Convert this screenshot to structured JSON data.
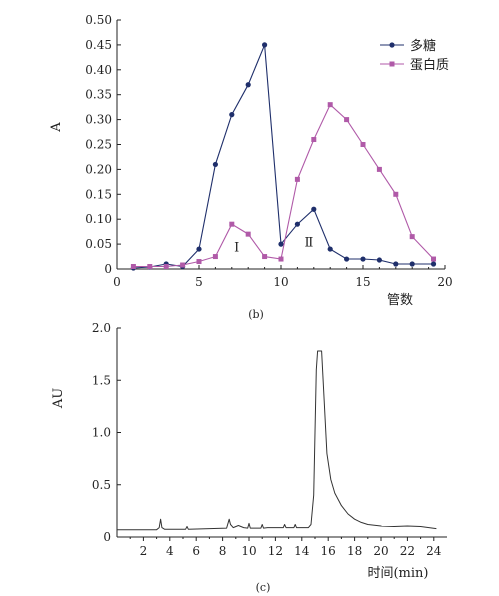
{
  "chart_data": [
    {
      "type": "line",
      "caption": "(b)",
      "xlabel": "管数",
      "ylabel": "A",
      "xlim": [
        0,
        20
      ],
      "ylim": [
        0,
        0.5
      ],
      "xticks": [
        0,
        5,
        10,
        15,
        20
      ],
      "yticks": [
        "0",
        "0.05",
        "0.10",
        "0.15",
        "0.20",
        "0.25",
        "0.30",
        "0.35",
        "0.40",
        "0.45",
        "0.50"
      ],
      "grid": false,
      "legend_position": "top-right",
      "series": [
        {
          "name": "多糖",
          "color": "#1f2f6b",
          "marker": "circle",
          "x": [
            1,
            2,
            3,
            4,
            5,
            6,
            7,
            8,
            9,
            10,
            11,
            12,
            13,
            14,
            15,
            16,
            17,
            18,
            19.3
          ],
          "y": [
            0.002,
            0.004,
            0.01,
            0.005,
            0.04,
            0.21,
            0.31,
            0.37,
            0.45,
            0.05,
            0.09,
            0.12,
            0.04,
            0.02,
            0.02,
            0.018,
            0.01,
            0.01,
            0.01
          ]
        },
        {
          "name": "蛋白质",
          "color": "#b05aa8",
          "marker": "square",
          "x": [
            1,
            2,
            3,
            4,
            5,
            6,
            7,
            8,
            9,
            10,
            11,
            12,
            13,
            14,
            15,
            16,
            17,
            18,
            19.3
          ],
          "y": [
            0.005,
            0.005,
            0.005,
            0.008,
            0.015,
            0.025,
            0.09,
            0.07,
            0.025,
            0.02,
            0.18,
            0.26,
            0.33,
            0.3,
            0.25,
            0.2,
            0.15,
            0.065,
            0.02
          ]
        }
      ],
      "annotations": [
        {
          "text": "Ⅰ",
          "x": 7.3,
          "y": 0.035
        },
        {
          "text": "Ⅱ",
          "x": 11.7,
          "y": 0.045
        }
      ]
    },
    {
      "type": "line",
      "caption": "(c)",
      "xlabel": "时间(min)",
      "ylabel": "AU",
      "xlim": [
        0,
        25
      ],
      "ylim": [
        0,
        2.0
      ],
      "xticks": [
        2,
        4,
        6,
        8,
        10,
        12,
        14,
        16,
        18,
        20,
        22,
        24
      ],
      "yticks": [
        "0",
        "0.5",
        "1.0",
        "1.5",
        "2.0"
      ],
      "grid": false,
      "series": [
        {
          "color": "#333333",
          "x": [
            0,
            3.0,
            3.2,
            3.3,
            3.4,
            3.6,
            5.2,
            5.3,
            5.4,
            8.3,
            8.5,
            8.6,
            8.8,
            9.2,
            9.6,
            9.9,
            10.0,
            10.1,
            10.4,
            10.9,
            11.0,
            11.1,
            11.4,
            12.0,
            12.6,
            12.7,
            12.8,
            13.4,
            13.5,
            13.6,
            14.5,
            14.7,
            14.9,
            15.0,
            15.1,
            15.2,
            15.5,
            15.7,
            15.9,
            16.2,
            16.5,
            17.0,
            17.5,
            18.0,
            18.5,
            19.0,
            20.0,
            21.0,
            22.0,
            23.0,
            24.2
          ],
          "y": [
            0.07,
            0.07,
            0.09,
            0.17,
            0.09,
            0.075,
            0.075,
            0.1,
            0.075,
            0.085,
            0.17,
            0.12,
            0.09,
            0.11,
            0.09,
            0.085,
            0.13,
            0.085,
            0.085,
            0.085,
            0.12,
            0.085,
            0.09,
            0.09,
            0.09,
            0.12,
            0.09,
            0.09,
            0.12,
            0.09,
            0.09,
            0.12,
            0.4,
            1.0,
            1.6,
            1.78,
            1.78,
            1.3,
            0.8,
            0.55,
            0.42,
            0.3,
            0.22,
            0.17,
            0.14,
            0.12,
            0.105,
            0.1,
            0.105,
            0.1,
            0.08
          ]
        }
      ]
    }
  ]
}
